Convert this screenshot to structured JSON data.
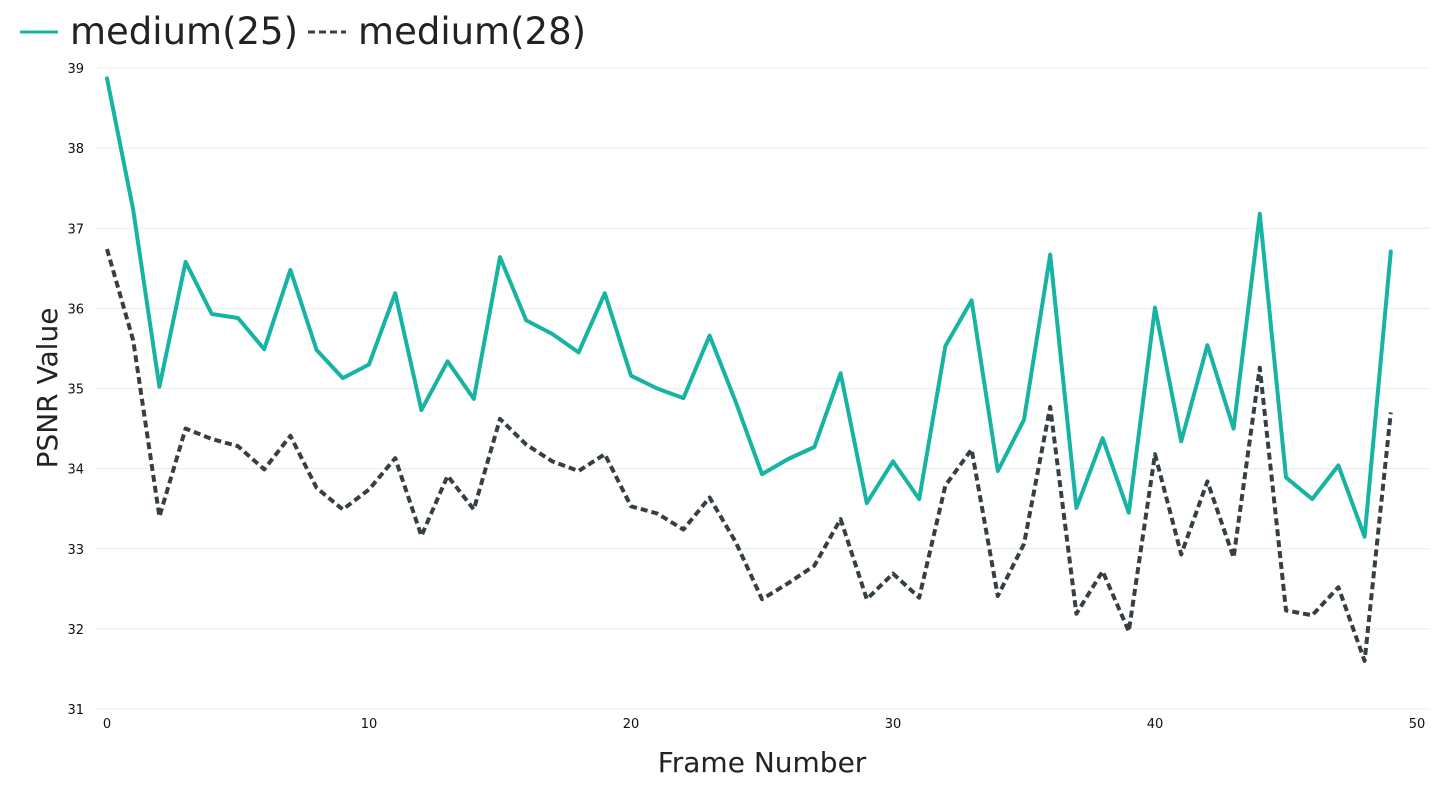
{
  "chart_data": {
    "type": "line",
    "xlabel": "Frame Number",
    "ylabel": "PSNR Value",
    "xlim": [
      0,
      50
    ],
    "ylim": [
      31,
      39
    ],
    "xticks": [
      0,
      10,
      20,
      30,
      40,
      50
    ],
    "yticks": [
      31,
      32,
      33,
      34,
      35,
      36,
      37,
      38,
      39
    ],
    "grid": "horizontal",
    "legend_position": "top-left",
    "x": [
      0,
      1,
      2,
      3,
      4,
      5,
      6,
      7,
      8,
      9,
      10,
      11,
      12,
      13,
      14,
      15,
      16,
      17,
      18,
      19,
      20,
      21,
      22,
      23,
      24,
      25,
      26,
      27,
      28,
      29,
      30,
      31,
      32,
      33,
      34,
      35,
      36,
      37,
      38,
      39,
      40,
      41,
      42,
      43,
      44,
      45,
      46,
      47,
      48,
      49
    ],
    "series": [
      {
        "name": "medium(25)",
        "color": "#17b3a3",
        "style": "solid",
        "values": [
          38.87,
          37.23,
          35.02,
          36.58,
          35.93,
          35.88,
          35.49,
          36.48,
          35.48,
          35.13,
          35.3,
          36.19,
          34.73,
          35.34,
          34.87,
          36.64,
          35.85,
          35.68,
          35.45,
          36.19,
          35.16,
          35.0,
          34.88,
          35.66,
          34.83,
          33.93,
          34.12,
          34.27,
          35.19,
          33.57,
          34.09,
          33.62,
          35.53,
          36.1,
          33.97,
          34.61,
          36.67,
          33.51,
          34.38,
          33.45,
          36.01,
          34.34,
          35.54,
          34.5,
          37.18,
          33.89,
          33.62,
          34.04,
          33.15,
          36.71
        ]
      },
      {
        "name": "medium(28)",
        "color": "#353f44",
        "style": "dashed",
        "values": [
          36.74,
          35.6,
          33.4,
          34.5,
          34.37,
          34.28,
          33.99,
          34.41,
          33.76,
          33.49,
          33.74,
          34.13,
          33.16,
          33.91,
          33.49,
          34.62,
          34.3,
          34.09,
          33.97,
          34.18,
          33.53,
          33.44,
          33.24,
          33.64,
          33.08,
          32.37,
          32.57,
          32.79,
          33.37,
          32.37,
          32.69,
          32.39,
          33.79,
          34.24,
          32.41,
          33.06,
          34.77,
          32.19,
          32.72,
          31.97,
          34.18,
          32.93,
          33.84,
          32.89,
          35.26,
          32.23,
          32.17,
          32.52,
          31.6,
          34.7
        ]
      }
    ]
  }
}
